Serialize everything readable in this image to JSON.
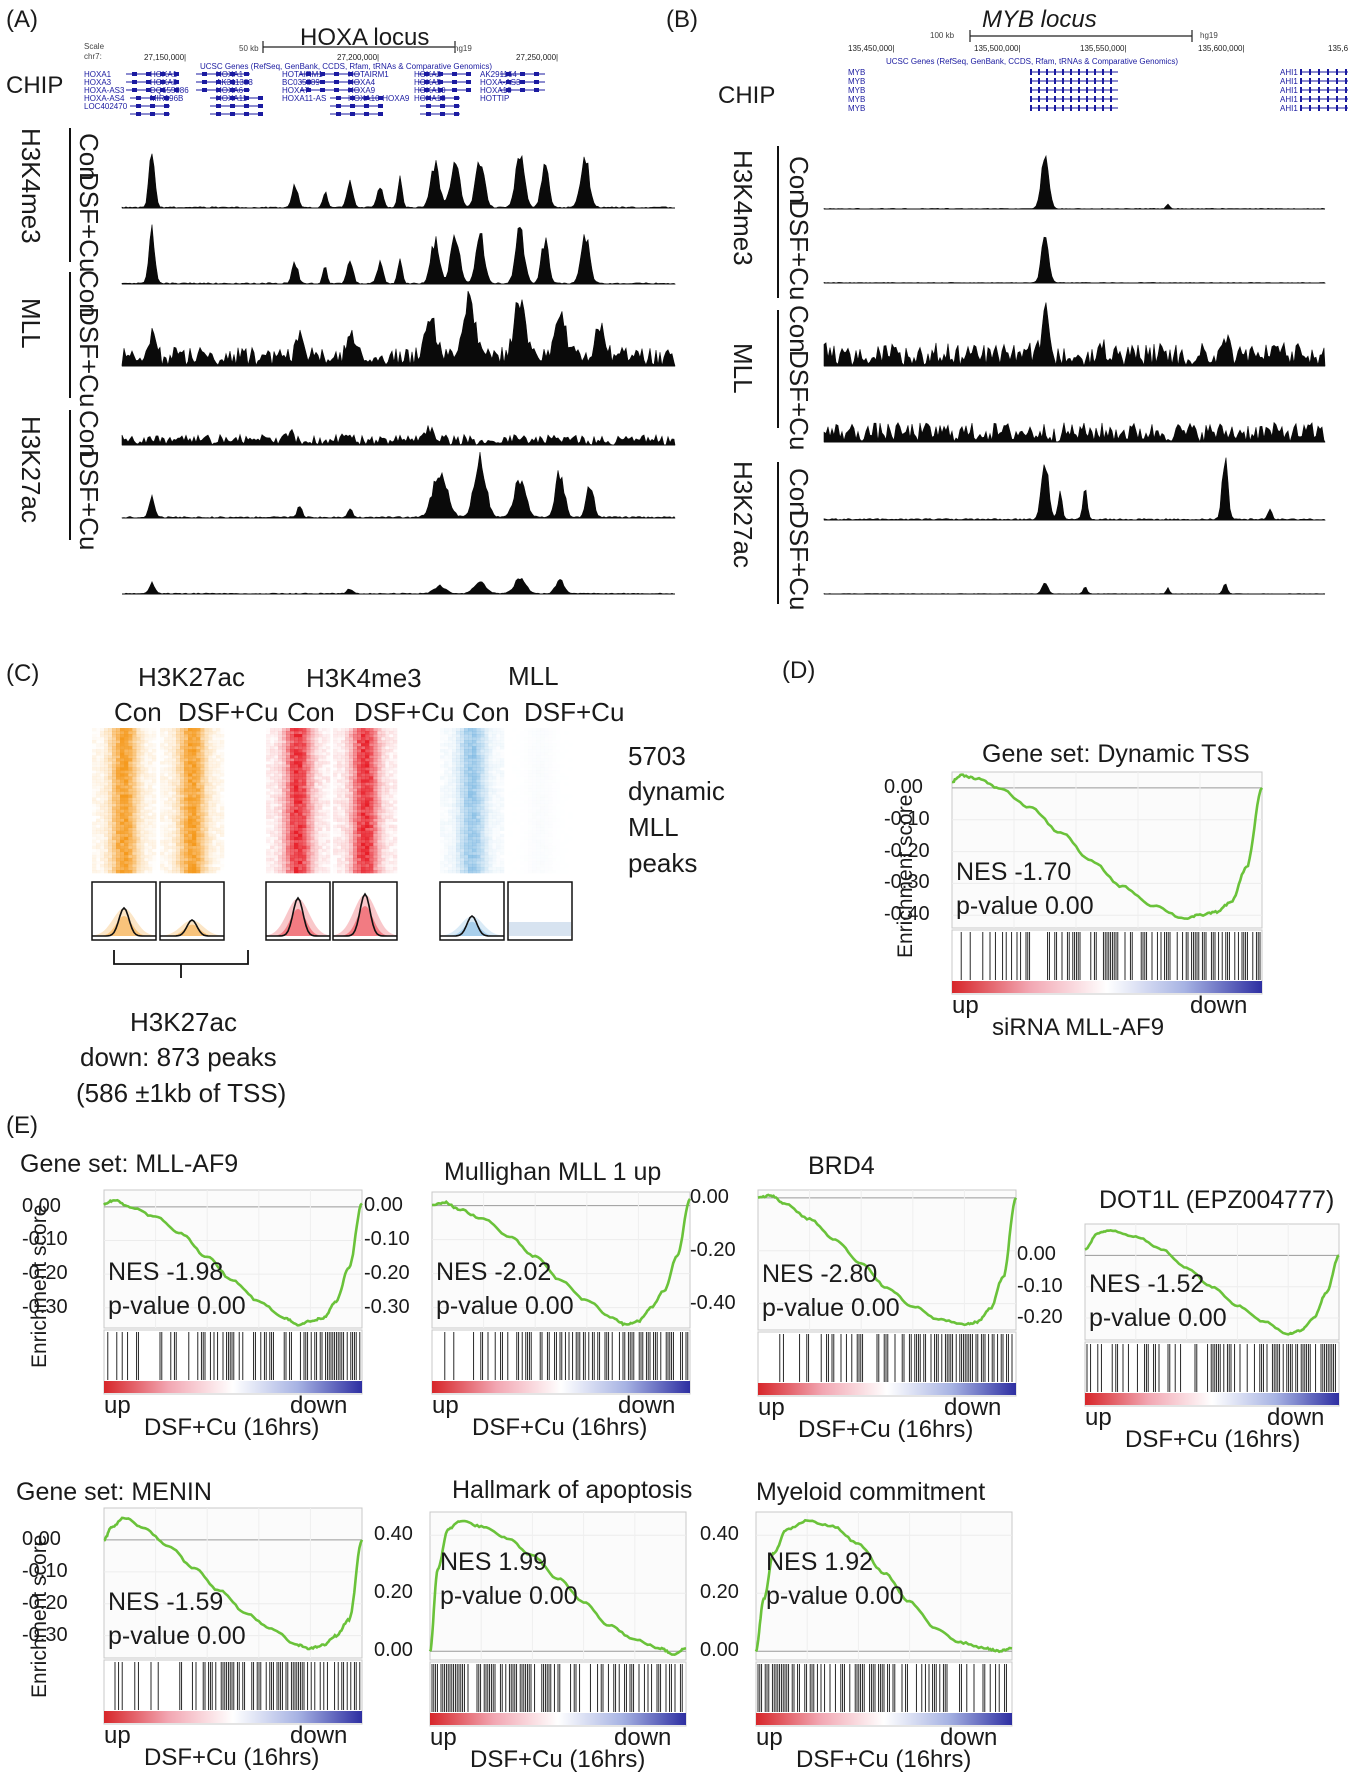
{
  "panels": {
    "A": {
      "letter": "(A)",
      "locus_title": "HOXA locus",
      "chip_label": "CHIP",
      "browser": {
        "scale_label": "Scale",
        "chr_label": "chr7:",
        "scale_bar": "50 kb",
        "assembly": "hg19",
        "coords": [
          "27,150,000|",
          "27,200,000|",
          "27,250,000|"
        ],
        "track_title": "UCSC Genes (RefSeq, GenBank, CCDS, Rfam, tRNAs & Comparative Genomics)",
        "genes": [
          "HOXA1",
          "HOXA1",
          "HOXA1",
          "HOTAIRM1",
          "HOTAIRM1",
          "HOXA2",
          "AK291164",
          "HOXA3",
          "HOXA3",
          "AK311383",
          "BC035889",
          "HOXA4",
          "HOXA5",
          "HOXA-AS3",
          "HOXA-AS3",
          "DQ655986",
          "HOXA6",
          "HOXA7",
          "HOXA9",
          "HOXA10",
          "HOXA10",
          "HOXA-AS4",
          "MIR196B",
          "HOXA11",
          "HOXA11-AS",
          "HOXA10-HOXA9",
          "HOXA13",
          "HOTTIP",
          "LOC402470"
        ]
      },
      "marks": [
        "H3K4me3",
        "MLL",
        "H3K27ac"
      ],
      "conditions": [
        "Con",
        "DSF+Cu"
      ]
    },
    "B": {
      "letter": "(B)",
      "locus_title": "MYB locus",
      "chip_label": "CHIP",
      "browser": {
        "scale_bar": "100 kb",
        "assembly": "hg19",
        "coords": [
          "135,450,000|",
          "135,500,000|",
          "135,550,000|",
          "135,600,000|",
          "135,6"
        ],
        "track_title": "UCSC Genes (RefSeq, GenBank, CCDS, Rfam, tRNAs & Comparative Genomics)",
        "genes": [
          "MYB",
          "MYB",
          "MYB",
          "MYB",
          "MYB",
          "AHI1",
          "AHI1",
          "AHI1",
          "AHI1",
          "AHI1"
        ]
      },
      "marks": [
        "H3K4me3",
        "MLL",
        "H3K27ac"
      ],
      "conditions": [
        "Con",
        "DSF+Cu"
      ]
    },
    "C": {
      "letter": "(C)",
      "marks": [
        "H3K27ac",
        "H3K4me3",
        "MLL"
      ],
      "conditions": [
        "Con",
        "DSF+Cu",
        "Con",
        "DSF+Cu",
        "Con",
        "DSF+Cu"
      ],
      "peaks_label": [
        "5703",
        "dynamic",
        "MLL",
        "peaks"
      ],
      "summary": [
        "H3K27ac",
        "down: 873 peaks",
        "(586 ±1kb of TSS)"
      ],
      "heatmap_colors": [
        "#f59a1e",
        "#f59a1e",
        "#e8202a",
        "#e8202a",
        "#6aaede",
        "#dfe9f3"
      ]
    },
    "D": {
      "letter": "(D)"
    },
    "E": {
      "letter": "(E)"
    }
  },
  "gsea_common": {
    "ylabel": "Enrichment score",
    "x_up": "up",
    "x_down": "down",
    "curve_color": "#6ac23a",
    "ramp_colors": [
      "#d7262a",
      "#f2a6b2",
      "#ffffff",
      "#a7b3e3",
      "#2e2fa2"
    ]
  },
  "chart_data": [
    {
      "type": "line",
      "id": "D",
      "title": "Gene set: Dynamic TSS",
      "nes": "NES -1.70",
      "pvalue": "p-value 0.00",
      "xlabel": "siRNA MLL-AF9",
      "yticks": [
        "0.00",
        "-0.10",
        "-0.20",
        "-0.30",
        "-0.40"
      ],
      "ytick_values": [
        0,
        -0.1,
        -0.2,
        -0.3,
        -0.4
      ],
      "ylim": [
        -0.44,
        0.05
      ],
      "x": [
        0,
        0.03,
        0.08,
        0.15,
        0.25,
        0.35,
        0.45,
        0.55,
        0.65,
        0.75,
        0.8,
        0.85,
        0.9,
        0.95,
        1.0
      ],
      "y": [
        0.02,
        0.04,
        0.03,
        0.0,
        -0.06,
        -0.14,
        -0.23,
        -0.31,
        -0.37,
        -0.41,
        -0.4,
        -0.39,
        -0.36,
        -0.25,
        0.0
      ]
    },
    {
      "type": "line",
      "id": "E1",
      "title": "Gene set:  MLL-AF9",
      "nes": "NES -1.98",
      "pvalue": "p-value 0.00",
      "xlabel": "DSF+Cu (16hrs)",
      "show_ylabel": true,
      "yticks": [
        "0.00",
        "-0.10",
        "-0.20",
        "-0.30"
      ],
      "ytick_values": [
        0,
        -0.1,
        -0.2,
        -0.3
      ],
      "ylim": [
        -0.36,
        0.05
      ],
      "x": [
        0,
        0.04,
        0.1,
        0.2,
        0.3,
        0.4,
        0.5,
        0.6,
        0.7,
        0.75,
        0.8,
        0.85,
        0.9,
        0.95,
        1.0
      ],
      "y": [
        0.01,
        0.02,
        0.0,
        -0.03,
        -0.08,
        -0.15,
        -0.22,
        -0.28,
        -0.33,
        -0.35,
        -0.34,
        -0.33,
        -0.28,
        -0.18,
        0.01
      ]
    },
    {
      "type": "line",
      "id": "E2",
      "title": "Mullighan MLL 1 up",
      "nes": "NES -2.02",
      "pvalue": "p-value 0.00",
      "xlabel": "DSF+Cu (16hrs)",
      "show_ylabel": false,
      "yticks": [
        "0.00",
        "-0.10",
        "-0.20",
        "-0.30"
      ],
      "ytick_values": [
        0,
        -0.1,
        -0.2,
        -0.3
      ],
      "ylim": [
        -0.36,
        0.04
      ],
      "x": [
        0,
        0.05,
        0.1,
        0.2,
        0.3,
        0.4,
        0.5,
        0.6,
        0.7,
        0.75,
        0.8,
        0.85,
        0.9,
        0.95,
        1.0
      ],
      "y": [
        0.0,
        0.01,
        -0.01,
        -0.04,
        -0.09,
        -0.15,
        -0.22,
        -0.28,
        -0.33,
        -0.35,
        -0.34,
        -0.3,
        -0.25,
        -0.15,
        0.02
      ]
    },
    {
      "type": "line",
      "id": "E3",
      "title": "BRD4",
      "nes": "NES -2.80",
      "pvalue": "p-value 0.00",
      "xlabel": "DSF+Cu (16hrs)",
      "show_ylabel": false,
      "yticks": [
        "0.00",
        "-0.20",
        "-0.40"
      ],
      "ytick_values": [
        0,
        -0.2,
        -0.4
      ],
      "ylim": [
        -0.5,
        0.03
      ],
      "x": [
        0,
        0.05,
        0.1,
        0.2,
        0.3,
        0.4,
        0.5,
        0.6,
        0.7,
        0.8,
        0.85,
        0.9,
        0.95,
        1.0
      ],
      "y": [
        0.0,
        0.01,
        -0.02,
        -0.08,
        -0.16,
        -0.25,
        -0.34,
        -0.41,
        -0.46,
        -0.48,
        -0.47,
        -0.42,
        -0.3,
        0.0
      ]
    },
    {
      "type": "line",
      "id": "E4",
      "title": "DOT1L (EPZ004777)",
      "nes": "NES -1.52",
      "pvalue": "p-value 0.00",
      "xlabel": "DSF+Cu (16hrs)",
      "show_ylabel": false,
      "yticks": [
        "0.00",
        "-0.10",
        "-0.20"
      ],
      "ytick_values": [
        0,
        -0.1,
        -0.2
      ],
      "ylim": [
        -0.27,
        0.1
      ],
      "x": [
        0,
        0.05,
        0.1,
        0.2,
        0.3,
        0.4,
        0.5,
        0.6,
        0.7,
        0.8,
        0.85,
        0.9,
        0.95,
        1.0
      ],
      "y": [
        0.02,
        0.07,
        0.08,
        0.06,
        0.02,
        -0.04,
        -0.1,
        -0.16,
        -0.21,
        -0.25,
        -0.24,
        -0.2,
        -0.12,
        0.0
      ]
    },
    {
      "type": "line",
      "id": "E5",
      "title": "Gene set:   MENIN",
      "nes": "NES -1.59",
      "pvalue": "p-value 0.00",
      "xlabel": "DSF+Cu (16hrs)",
      "show_ylabel": true,
      "yticks": [
        "0.00",
        "-0.10",
        "-0.20",
        "-0.30"
      ],
      "ytick_values": [
        0,
        -0.1,
        -0.2,
        -0.3
      ],
      "ylim": [
        -0.37,
        0.1
      ],
      "x": [
        0,
        0.03,
        0.08,
        0.15,
        0.25,
        0.35,
        0.45,
        0.55,
        0.65,
        0.75,
        0.8,
        0.85,
        0.9,
        0.95,
        1.0
      ],
      "y": [
        0.0,
        0.04,
        0.07,
        0.04,
        -0.02,
        -0.09,
        -0.16,
        -0.23,
        -0.28,
        -0.33,
        -0.34,
        -0.33,
        -0.3,
        -0.25,
        0.0
      ]
    },
    {
      "type": "line",
      "id": "E6",
      "title": "Hallmark of apoptosis",
      "nes": "NES 1.99",
      "pvalue": "p-value 0.00",
      "xlabel": "DSF+Cu (16hrs)",
      "show_ylabel": false,
      "yticks": [
        "0.40",
        "0.20",
        "0.00"
      ],
      "ytick_values": [
        0.4,
        0.2,
        0
      ],
      "ylim": [
        -0.03,
        0.48
      ],
      "x": [
        0,
        0.03,
        0.07,
        0.12,
        0.2,
        0.3,
        0.4,
        0.5,
        0.6,
        0.7,
        0.8,
        0.9,
        0.95,
        1.0
      ],
      "y": [
        0.0,
        0.28,
        0.42,
        0.45,
        0.43,
        0.39,
        0.33,
        0.25,
        0.17,
        0.09,
        0.04,
        0.01,
        -0.01,
        0.01
      ]
    },
    {
      "type": "line",
      "id": "E7",
      "title": "Myeloid commitment",
      "nes": "NES 1.92",
      "pvalue": "p-value 0.00",
      "xlabel": "DSF+Cu (16hrs)",
      "show_ylabel": false,
      "yticks": [
        "0.40",
        "0.20",
        "0.00"
      ],
      "ytick_values": [
        0.4,
        0.2,
        0
      ],
      "ylim": [
        -0.03,
        0.48
      ],
      "x": [
        0,
        0.03,
        0.07,
        0.12,
        0.2,
        0.3,
        0.4,
        0.5,
        0.6,
        0.7,
        0.8,
        0.9,
        0.95,
        1.0
      ],
      "y": [
        0.0,
        0.18,
        0.34,
        0.42,
        0.45,
        0.43,
        0.37,
        0.27,
        0.17,
        0.08,
        0.03,
        0.01,
        0.0,
        0.01
      ]
    }
  ]
}
